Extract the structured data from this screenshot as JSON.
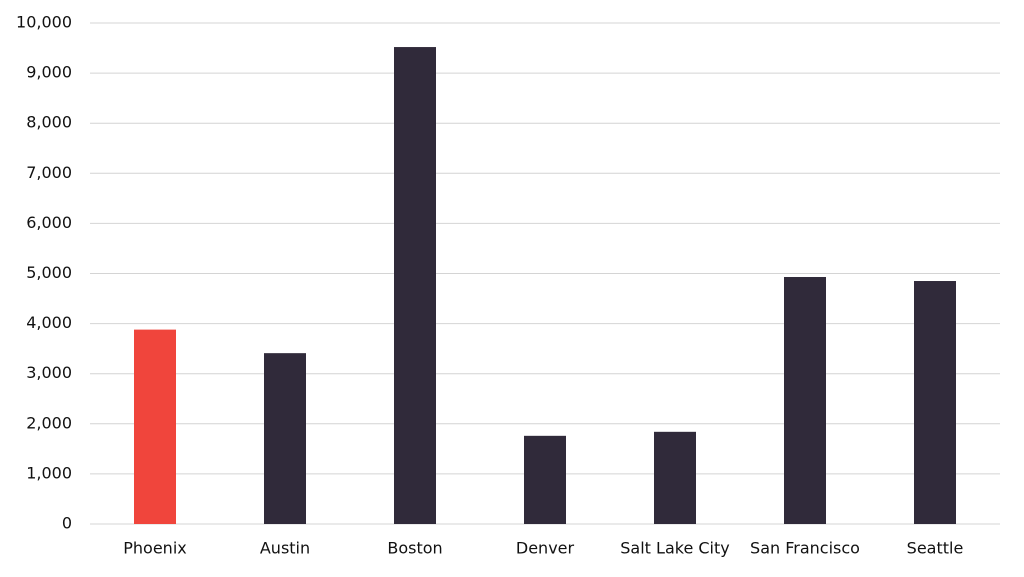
{
  "chart_data": {
    "type": "bar",
    "categories": [
      "Phoenix",
      "Austin",
      "Boston",
      "Denver",
      "Salt Lake City",
      "San Francisco",
      "Seattle"
    ],
    "values": [
      3880,
      3410,
      9520,
      1760,
      1840,
      4930,
      4850
    ],
    "colors": [
      "#f0453c",
      "#302a3a",
      "#302a3a",
      "#302a3a",
      "#302a3a",
      "#302a3a",
      "#302a3a"
    ],
    "ylim": [
      0,
      10000
    ],
    "yticks": [
      0,
      {
        "value": 1000,
        "label": "1,000"
      },
      {
        "value": 2000,
        "label": "2,000"
      },
      {
        "value": 3000,
        "label": "3,000"
      },
      {
        "value": 4000,
        "label": "4,000"
      },
      {
        "value": 5000,
        "label": "5,000"
      },
      {
        "value": 6000,
        "label": "6,000"
      },
      {
        "value": 7000,
        "label": "7,000"
      },
      {
        "value": 8000,
        "label": "8,000"
      },
      {
        "value": 9000,
        "label": "9,000"
      },
      {
        "value": 10000,
        "label": "10,000"
      }
    ],
    "grid": true
  }
}
